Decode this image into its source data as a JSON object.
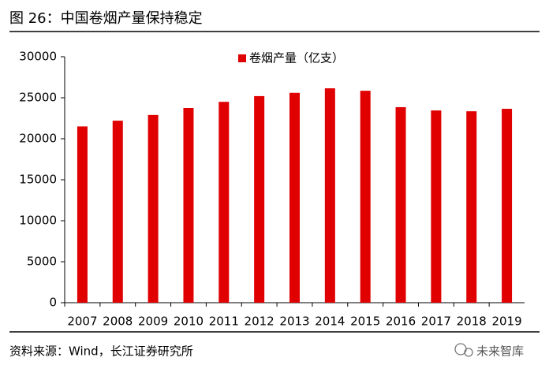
{
  "chart_data": {
    "type": "bar",
    "title": "图 26：中国卷烟产量保持稳定",
    "categories": [
      "2007",
      "2008",
      "2009",
      "2010",
      "2011",
      "2012",
      "2013",
      "2014",
      "2015",
      "2016",
      "2017",
      "2018",
      "2019"
    ],
    "series": [
      {
        "name": "卷烟产量（亿支）",
        "color": "#e00000",
        "values": [
          21500,
          22200,
          22900,
          23750,
          24500,
          25200,
          25600,
          26150,
          25850,
          23850,
          23450,
          23350,
          23650
        ]
      }
    ],
    "ylim": [
      0,
      30000
    ],
    "yticks": [
      0,
      5000,
      10000,
      15000,
      20000,
      25000,
      30000
    ],
    "legend": "top"
  },
  "source": "资料来源：Wind，长江证券研究所",
  "watermark": "未来智库"
}
